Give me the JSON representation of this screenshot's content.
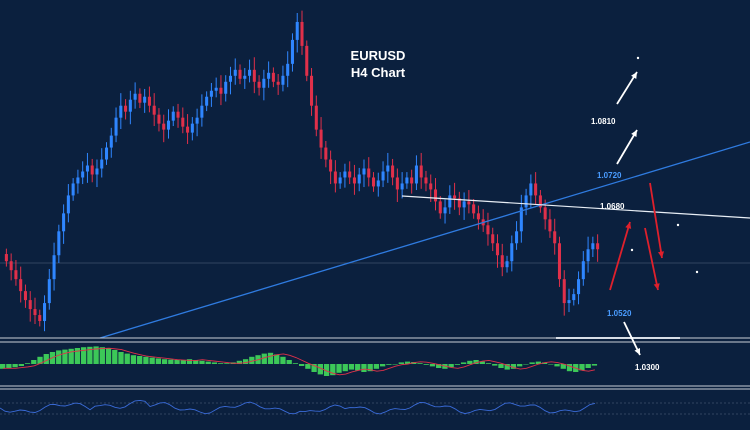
{
  "chart_data": {
    "type": "candlestick",
    "title": "EURUSD",
    "subtitle": "H4 Chart",
    "colors": {
      "background": "#0b203e",
      "bull": "#2f86ff",
      "bear": "#e0304a",
      "trendline_blue": "#2f7be0",
      "trendline_white": "#e8eef5",
      "arrow_white": "#ffffff",
      "arrow_red": "#e0202c",
      "macd_hist": "#3cc858",
      "macd_signal": "#e0304a",
      "rsi_line": "#3a6bd8",
      "separator": "#c8ced6"
    },
    "levels": [
      {
        "label": "1.0810",
        "value": 1.081,
        "color": "#ffffff"
      },
      {
        "label": "1.0720",
        "value": 1.072,
        "color": "#4a9cff"
      },
      {
        "label": "1.0680",
        "value": 1.068,
        "color": "#ffffff"
      },
      {
        "label": "1.0520",
        "value": 1.052,
        "color": "#4a9cff"
      },
      {
        "label": "1.0300",
        "value": 1.03,
        "color": "#ffffff"
      }
    ],
    "closes": [
      1.057,
      1.0555,
      1.054,
      1.052,
      1.0505,
      1.049,
      1.048,
      1.047,
      1.05,
      1.054,
      1.058,
      1.062,
      1.065,
      1.068,
      1.07,
      1.071,
      1.072,
      1.073,
      1.0715,
      1.0725,
      1.074,
      1.076,
      1.078,
      1.081,
      1.083,
      1.082,
      1.084,
      1.085,
      1.0835,
      1.0845,
      1.083,
      1.0815,
      1.08,
      1.079,
      1.0805,
      1.082,
      1.081,
      1.0795,
      1.0785,
      1.08,
      1.081,
      1.083,
      1.0845,
      1.0855,
      1.086,
      1.085,
      1.087,
      1.088,
      1.089,
      1.0875,
      1.088,
      1.089,
      1.087,
      1.086,
      1.0875,
      1.0885,
      1.087,
      1.0865,
      1.088,
      1.09,
      1.094,
      1.097,
      1.093,
      1.088,
      1.083,
      1.079,
      1.076,
      1.074,
      1.072,
      1.07,
      1.071,
      1.072,
      1.071,
      1.07,
      1.0715,
      1.0725,
      1.071,
      1.0695,
      1.0705,
      1.072,
      1.073,
      1.071,
      1.069,
      1.07,
      1.071,
      1.07,
      1.073,
      1.071,
      1.07,
      1.069,
      1.067,
      1.065,
      1.066,
      1.068,
      1.0675,
      1.066,
      1.067,
      1.0665,
      1.065,
      1.064,
      1.063,
      1.0615,
      1.06,
      1.058,
      1.056,
      1.057,
      1.06,
      1.062,
      1.066,
      1.068,
      1.07,
      1.068,
      1.066,
      1.064,
      1.062,
      1.06,
      1.054,
      1.05,
      1.0505,
      1.0515,
      1.054,
      1.057,
      1.059,
      1.06,
      1.059
    ]
  },
  "indicators": {
    "macd": {
      "hist": [
        -0.12,
        -0.1,
        -0.08,
        -0.05,
        0.02,
        0.1,
        0.18,
        0.25,
        0.3,
        0.34,
        0.36,
        0.38,
        0.4,
        0.42,
        0.43,
        0.44,
        0.42,
        0.4,
        0.35,
        0.3,
        0.26,
        0.22,
        0.2,
        0.18,
        0.16,
        0.14,
        0.12,
        0.11,
        0.1,
        0.1,
        0.12,
        0.1,
        0.08,
        0.06,
        0.04,
        0.02,
        0.02,
        0.04,
        0.08,
        0.12,
        0.18,
        0.22,
        0.26,
        0.28,
        0.24,
        0.18,
        0.1,
        0.02,
        -0.05,
        -0.12,
        -0.2,
        -0.26,
        -0.3,
        -0.28,
        -0.22,
        -0.18,
        -0.14,
        -0.16,
        -0.2,
        -0.18,
        -0.12,
        -0.06,
        -0.02,
        0.0,
        0.04,
        0.06,
        0.05,
        0.02,
        -0.02,
        -0.06,
        -0.1,
        -0.12,
        -0.08,
        -0.02,
        0.04,
        0.08,
        0.1,
        0.06,
        0.02,
        -0.04,
        -0.1,
        -0.14,
        -0.12,
        -0.06,
        0.0,
        0.04,
        0.06,
        0.04,
        0.0,
        -0.06,
        -0.12,
        -0.18,
        -0.2,
        -0.16,
        -0.1,
        -0.04
      ]
    }
  }
}
